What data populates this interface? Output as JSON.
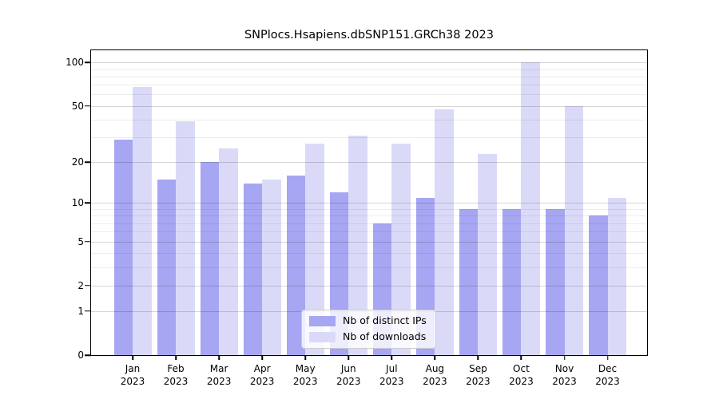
{
  "chart_data": {
    "type": "bar",
    "title": "SNPlocs.Hsapiens.dbSNP151.GRCh38 2023",
    "categories": [
      "Jan",
      "Feb",
      "Mar",
      "Apr",
      "May",
      "Jun",
      "Jul",
      "Aug",
      "Sep",
      "Oct",
      "Nov",
      "Dec"
    ],
    "category_year": "2023",
    "series": [
      {
        "name": "Nb of distinct IPs",
        "color": "#a6a6f2",
        "values": [
          29,
          15,
          20,
          14,
          16,
          12,
          7,
          11,
          9,
          9,
          9,
          8
        ]
      },
      {
        "name": "Nb of downloads",
        "color": "#dadaf8",
        "values": [
          68,
          39,
          25,
          15,
          27,
          31,
          27,
          47,
          23,
          100,
          50,
          11
        ]
      }
    ],
    "xlabel": "",
    "ylabel": "",
    "y_axis": {
      "scale": "log1p",
      "top_value": 121.5,
      "major_ticks": [
        100,
        50,
        20,
        10,
        5,
        2,
        1,
        0
      ],
      "major_tick_labels": [
        "100",
        "50",
        "20",
        "10",
        "5",
        "2",
        "1",
        "0"
      ],
      "minor_gridlines": [
        3,
        4,
        6,
        7,
        8,
        9,
        30,
        40,
        60,
        70,
        80,
        90
      ]
    },
    "grid": true,
    "legend_position": "lower-center-right-inside"
  },
  "styles": {
    "background": "#ffffff",
    "spine_color": "#000000",
    "text_color": "#000000",
    "major_grid_color": "rgba(0,0,0,0.16)",
    "minor_grid_color": "rgba(0,0,0,0.07)",
    "legend_bg": "rgba(255,255,255,0.8)",
    "legend_border": "#cccccc"
  }
}
